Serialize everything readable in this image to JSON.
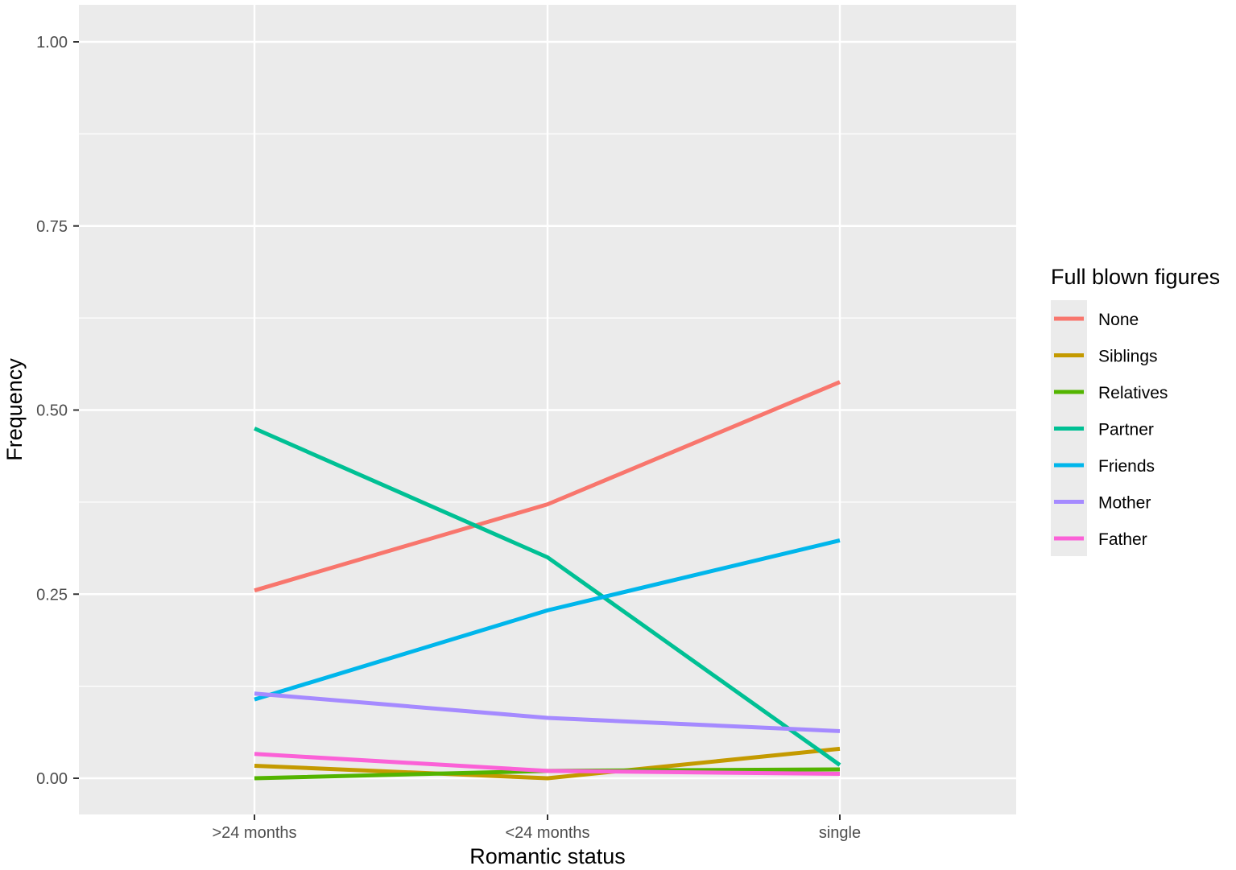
{
  "chart_data": {
    "type": "line",
    "xlabel": "Romantic status",
    "ylabel": "Frequency",
    "categories": [
      ">24 months",
      "<24 months",
      "single"
    ],
    "ylim": [
      -0.05,
      1.04
    ],
    "yticks": [
      0.0,
      0.25,
      0.5,
      0.75,
      1.0
    ],
    "ytick_labels": [
      "0.00",
      "0.25",
      "0.50",
      "0.75",
      "1.00"
    ],
    "grid": true,
    "legend": {
      "title": "Full blown figures",
      "position": "right"
    },
    "series": [
      {
        "name": "None",
        "color": "#F8766D",
        "values": [
          0.255,
          0.372,
          0.538
        ]
      },
      {
        "name": "Siblings",
        "color": "#C49A00",
        "values": [
          0.017,
          0.0,
          0.04
        ]
      },
      {
        "name": "Relatives",
        "color": "#53B400",
        "values": [
          0.0,
          0.01,
          0.012
        ]
      },
      {
        "name": "Partner",
        "color": "#00C094",
        "values": [
          0.475,
          0.3,
          0.018
        ]
      },
      {
        "name": "Friends",
        "color": "#00B6EB",
        "values": [
          0.107,
          0.228,
          0.323
        ]
      },
      {
        "name": "Mother",
        "color": "#A58AFF",
        "values": [
          0.115,
          0.082,
          0.064
        ]
      },
      {
        "name": "Father",
        "color": "#FB61D7",
        "values": [
          0.033,
          0.01,
          0.006
        ]
      }
    ]
  }
}
